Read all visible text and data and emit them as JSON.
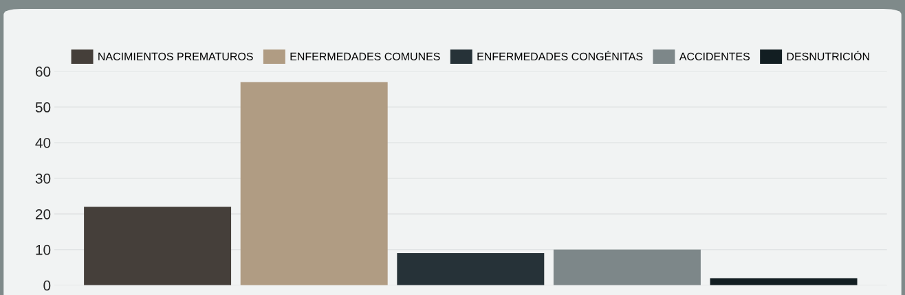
{
  "chart_data": {
    "type": "bar",
    "categories": [
      null
    ],
    "series": [
      {
        "name": "NACIMIENTOS PREMATUROS",
        "color": "#453f3a",
        "values": [
          22
        ]
      },
      {
        "name": "ENFERMEDADES COMUNES",
        "color": "#b09c83",
        "values": [
          57
        ]
      },
      {
        "name": "ENFERMEDADES CONGÉNITAS",
        "color": "#263238",
        "values": [
          9
        ]
      },
      {
        "name": "ACCIDENTES",
        "color": "#7d8789",
        "values": [
          10
        ]
      },
      {
        "name": "DESNUTRICIÓN",
        "color": "#121e22",
        "values": [
          2
        ]
      }
    ],
    "ylim": [
      0,
      60
    ],
    "yticks": [
      0,
      10,
      20,
      30,
      40,
      50,
      60
    ],
    "grid": "y",
    "legend": "top"
  }
}
